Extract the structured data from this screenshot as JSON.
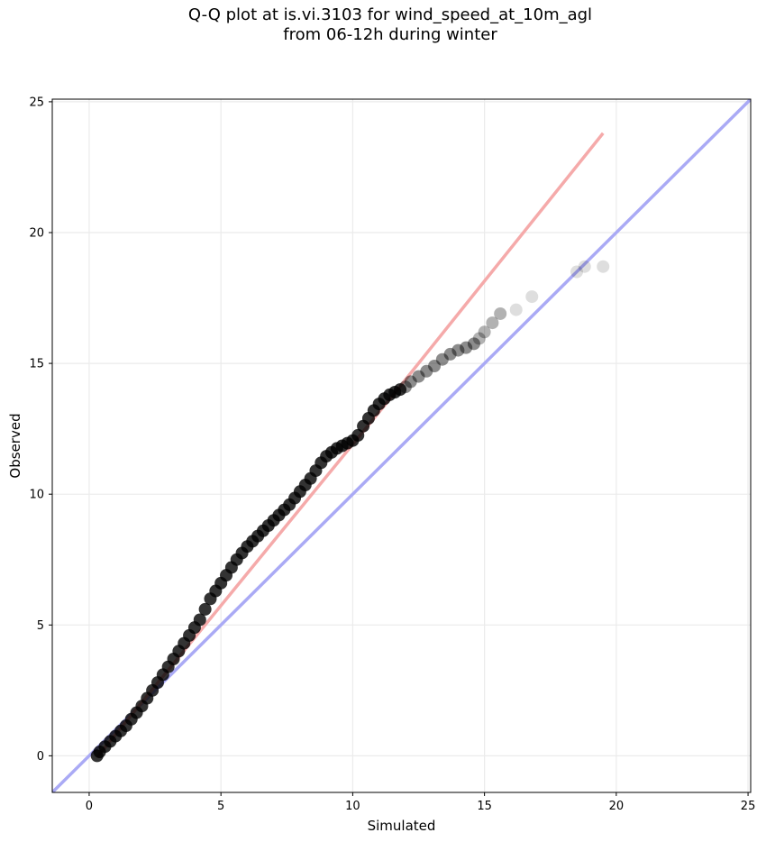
{
  "title_line1": "Q-Q plot at is.vi.3103 for wind_speed_at_10m_agl",
  "title_line2": "from 06-12h during winter",
  "chart_data": {
    "type": "scatter",
    "title": "Q-Q plot at is.vi.3103 for wind_speed_at_10m_agl from 06-12h during winter",
    "xlabel": "Simulated",
    "ylabel": "Observed",
    "xlim": [
      -1.4,
      25.1
    ],
    "ylim": [
      -1.4,
      25.1
    ],
    "xticks": [
      0,
      5,
      10,
      15,
      20,
      25
    ],
    "yticks": [
      0,
      5,
      10,
      15,
      20,
      25
    ],
    "grid": true,
    "colors": {
      "points": "#000000",
      "identity_line": "#aaaaf5",
      "fit_line": "#f5aaaa"
    },
    "identity_line": {
      "x": [
        -1.4,
        25.1
      ],
      "y": [
        -1.4,
        25.1
      ]
    },
    "fit_line": {
      "x": [
        0.3,
        11.7,
        19.5
      ],
      "y": [
        -0.05,
        14.0,
        23.8
      ]
    },
    "quantiles": {
      "x": [
        0.3,
        0.4,
        0.6,
        0.8,
        1.0,
        1.2,
        1.4,
        1.6,
        1.8,
        2.0,
        2.2,
        2.4,
        2.6,
        2.8,
        3.0,
        3.2,
        3.4,
        3.6,
        3.8,
        4.0,
        4.2,
        4.4,
        4.6,
        4.8,
        5.0,
        5.2,
        5.4,
        5.6,
        5.8,
        6.0,
        6.2,
        6.4,
        6.6,
        6.8,
        7.0,
        7.2,
        7.4,
        7.6,
        7.8,
        8.0,
        8.2,
        8.4,
        8.6,
        8.8,
        9.0,
        9.2,
        9.4,
        9.6,
        9.8,
        10.0,
        10.2,
        10.4,
        10.6,
        10.8,
        11.0,
        11.2,
        11.4,
        11.6,
        11.8,
        12.0,
        12.2,
        12.5,
        12.8,
        13.1,
        13.4,
        13.7,
        14.0,
        14.3,
        14.6,
        14.8,
        15.0,
        15.3,
        15.6,
        16.2,
        16.8,
        18.5,
        18.8,
        19.5
      ],
      "y": [
        0.0,
        0.15,
        0.35,
        0.55,
        0.75,
        0.95,
        1.15,
        1.4,
        1.65,
        1.9,
        2.2,
        2.5,
        2.8,
        3.1,
        3.4,
        3.7,
        4.0,
        4.3,
        4.6,
        4.9,
        5.2,
        5.6,
        6.0,
        6.3,
        6.6,
        6.9,
        7.2,
        7.5,
        7.75,
        8.0,
        8.2,
        8.4,
        8.6,
        8.8,
        9.0,
        9.2,
        9.4,
        9.6,
        9.85,
        10.1,
        10.35,
        10.6,
        10.9,
        11.2,
        11.45,
        11.6,
        11.75,
        11.85,
        11.95,
        12.05,
        12.25,
        12.6,
        12.9,
        13.2,
        13.45,
        13.65,
        13.8,
        13.9,
        14.0,
        14.1,
        14.3,
        14.5,
        14.7,
        14.9,
        15.15,
        15.35,
        15.5,
        15.6,
        15.75,
        15.95,
        16.2,
        16.55,
        16.9,
        17.05,
        17.55,
        18.5,
        18.7,
        18.7
      ]
    }
  }
}
